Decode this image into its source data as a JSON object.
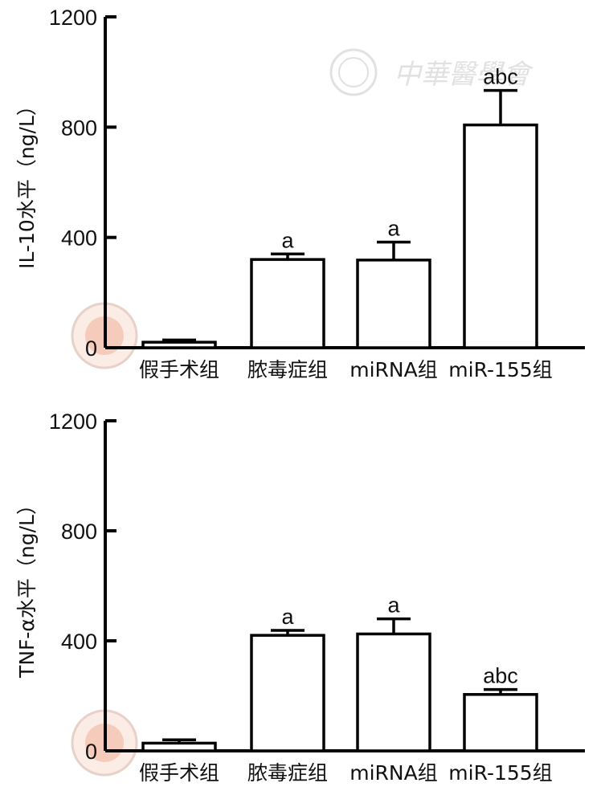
{
  "watermark": {
    "text": "中華醫學會"
  },
  "chart_data": [
    {
      "type": "bar",
      "ylabel": "IL-10水平（ng/L）",
      "ylim": [
        0,
        1200
      ],
      "yticks": [
        "0",
        "400",
        "800",
        "1200"
      ],
      "categories": [
        "假手术组",
        "脓毒症组",
        "miRNA组",
        "miR-155组"
      ],
      "values": [
        20,
        320,
        318,
        808
      ],
      "errors": [
        8,
        20,
        65,
        125
      ],
      "sig_labels": [
        "",
        "a",
        "a",
        "abc"
      ],
      "colors": {
        "bar_fill": "#ffffff",
        "stroke": "#000000"
      }
    },
    {
      "type": "bar",
      "ylabel": "TNF-α水平（ng/L）",
      "ylim": [
        0,
        1200
      ],
      "yticks": [
        "0",
        "400",
        "800",
        "1200"
      ],
      "categories": [
        "假手术组",
        "脓毒症组",
        "miRNA组",
        "miR-155组"
      ],
      "values": [
        28,
        420,
        425,
        205
      ],
      "errors": [
        12,
        18,
        55,
        18
      ],
      "sig_labels": [
        "",
        "a",
        "a",
        "abc"
      ],
      "colors": {
        "bar_fill": "#ffffff",
        "stroke": "#000000"
      }
    }
  ]
}
